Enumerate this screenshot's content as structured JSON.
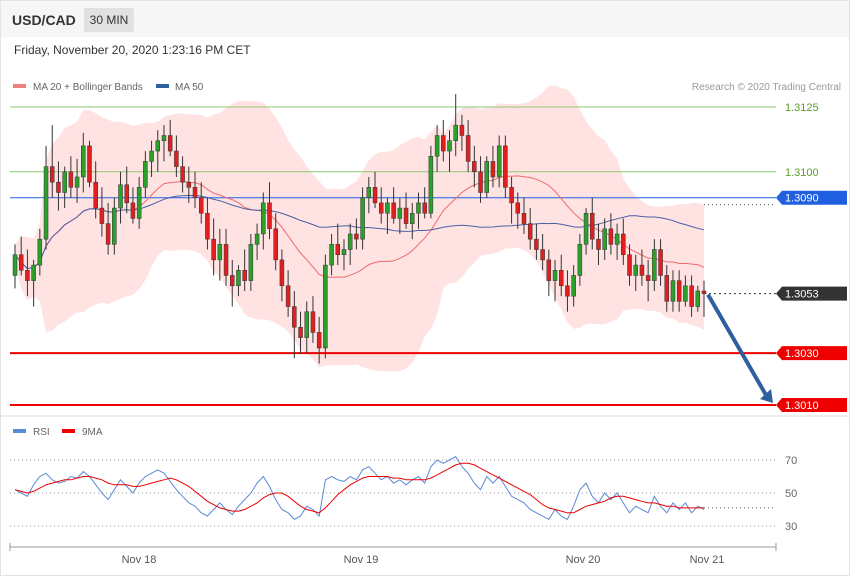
{
  "header": {
    "symbol": "USD/CAD",
    "interval": "30 MIN",
    "datetime": "Friday, November 20, 2020 1:23:16 PM CET"
  },
  "legend": {
    "ma20_label": "MA 20 + Bollinger Bands",
    "ma20_color": "#f08080",
    "ma50_label": "MA 50",
    "ma50_color": "#2e5f9e",
    "credit": "Research © 2020 Trading Central"
  },
  "colors": {
    "bull": "#2ca02c",
    "bear": "#e02020",
    "band": "#ffd9d9",
    "ma50": "#4a5fa8",
    "ma20": "#f06a6a",
    "resistance": "#2060e0",
    "support": "#ee0000",
    "current": "#333333",
    "forecast": "#2e5f9e",
    "rsi": "#5a8ad8",
    "rsi_ma": "#ee0000",
    "target_lines": "#8cc870"
  },
  "chart_data": [
    {
      "type": "candlestick",
      "title": "USD/CAD 30 MIN",
      "ylim": [
        1.299,
        1.314
      ],
      "x_tick_labels": [
        "Nov 18",
        "Nov 19",
        "Nov 20",
        "Nov 21"
      ],
      "levels": [
        {
          "value": 1.3125,
          "label": "1.3125",
          "kind": "target"
        },
        {
          "value": 1.31,
          "label": "1.3100",
          "kind": "target"
        },
        {
          "value": 1.309,
          "label": "1.3090",
          "kind": "resistance"
        },
        {
          "value": 1.3053,
          "label": "1.3053",
          "kind": "current"
        },
        {
          "value": 1.303,
          "label": "1.3030",
          "kind": "support"
        },
        {
          "value": 1.301,
          "label": "1.3010",
          "kind": "support"
        }
      ],
      "forecast": {
        "from": 1.3053,
        "to": 1.301,
        "direction": "down"
      },
      "ohlc": [
        [
          1.306,
          1.3072,
          1.3055,
          1.3068
        ],
        [
          1.3068,
          1.3075,
          1.306,
          1.3062
        ],
        [
          1.3062,
          1.307,
          1.3052,
          1.3058
        ],
        [
          1.3058,
          1.3066,
          1.3048,
          1.3064
        ],
        [
          1.3064,
          1.3078,
          1.306,
          1.3074
        ],
        [
          1.3074,
          1.311,
          1.307,
          1.3102
        ],
        [
          1.3102,
          1.3118,
          1.309,
          1.3096
        ],
        [
          1.3096,
          1.3104,
          1.3085,
          1.3092
        ],
        [
          1.3092,
          1.3102,
          1.3086,
          1.31
        ],
        [
          1.31,
          1.3106,
          1.309,
          1.3094
        ],
        [
          1.3094,
          1.3105,
          1.3088,
          1.3098
        ],
        [
          1.3098,
          1.3115,
          1.3092,
          1.311
        ],
        [
          1.311,
          1.3112,
          1.3094,
          1.3096
        ],
        [
          1.3096,
          1.3104,
          1.3082,
          1.3086
        ],
        [
          1.3086,
          1.3094,
          1.3075,
          1.308
        ],
        [
          1.308,
          1.3088,
          1.3068,
          1.3072
        ],
        [
          1.3072,
          1.309,
          1.3068,
          1.3086
        ],
        [
          1.3086,
          1.31,
          1.308,
          1.3095
        ],
        [
          1.3095,
          1.3102,
          1.3084,
          1.3088
        ],
        [
          1.3088,
          1.3094,
          1.308,
          1.3082
        ],
        [
          1.3082,
          1.3098,
          1.3078,
          1.3094
        ],
        [
          1.3094,
          1.3108,
          1.309,
          1.3104
        ],
        [
          1.3104,
          1.3112,
          1.3098,
          1.3108
        ],
        [
          1.3108,
          1.3116,
          1.31,
          1.3112
        ],
        [
          1.3112,
          1.3118,
          1.3104,
          1.3114
        ],
        [
          1.3114,
          1.312,
          1.3106,
          1.3108
        ],
        [
          1.3108,
          1.3114,
          1.3098,
          1.3102
        ],
        [
          1.3102,
          1.3106,
          1.3092,
          1.3096
        ],
        [
          1.3096,
          1.3102,
          1.3088,
          1.3094
        ],
        [
          1.3094,
          1.31,
          1.3086,
          1.309
        ],
        [
          1.309,
          1.3096,
          1.308,
          1.3084
        ],
        [
          1.3084,
          1.309,
          1.307,
          1.3074
        ],
        [
          1.3074,
          1.3082,
          1.306,
          1.3066
        ],
        [
          1.3066,
          1.3078,
          1.3058,
          1.3072
        ],
        [
          1.3072,
          1.3078,
          1.3056,
          1.306
        ],
        [
          1.306,
          1.3066,
          1.3048,
          1.3056
        ],
        [
          1.3056,
          1.3064,
          1.3052,
          1.3062
        ],
        [
          1.3062,
          1.307,
          1.3054,
          1.3058
        ],
        [
          1.3058,
          1.3076,
          1.3054,
          1.3072
        ],
        [
          1.3072,
          1.308,
          1.3066,
          1.3076
        ],
        [
          1.3076,
          1.3092,
          1.307,
          1.3088
        ],
        [
          1.3088,
          1.3096,
          1.3074,
          1.3078
        ],
        [
          1.3078,
          1.3084,
          1.3062,
          1.3066
        ],
        [
          1.3066,
          1.307,
          1.305,
          1.3056
        ],
        [
          1.3056,
          1.3062,
          1.3044,
          1.3048
        ],
        [
          1.3048,
          1.3054,
          1.3028,
          1.304
        ],
        [
          1.304,
          1.3046,
          1.303,
          1.3036
        ],
        [
          1.3036,
          1.305,
          1.303,
          1.3046
        ],
        [
          1.3046,
          1.3052,
          1.3034,
          1.3038
        ],
        [
          1.3038,
          1.3044,
          1.3026,
          1.3032
        ],
        [
          1.3032,
          1.3068,
          1.3028,
          1.3064
        ],
        [
          1.3064,
          1.3076,
          1.306,
          1.3072
        ],
        [
          1.3072,
          1.308,
          1.3064,
          1.3068
        ],
        [
          1.3068,
          1.3074,
          1.3062,
          1.307
        ],
        [
          1.307,
          1.308,
          1.3064,
          1.3076
        ],
        [
          1.3076,
          1.3082,
          1.307,
          1.3074
        ],
        [
          1.3074,
          1.3094,
          1.307,
          1.309
        ],
        [
          1.309,
          1.3098,
          1.3084,
          1.3094
        ],
        [
          1.3094,
          1.31,
          1.3086,
          1.3088
        ],
        [
          1.3088,
          1.3094,
          1.308,
          1.3084
        ],
        [
          1.3084,
          1.309,
          1.3076,
          1.3088
        ],
        [
          1.3088,
          1.3094,
          1.308,
          1.3082
        ],
        [
          1.3082,
          1.309,
          1.3076,
          1.3086
        ],
        [
          1.3086,
          1.3092,
          1.3078,
          1.308
        ],
        [
          1.308,
          1.3088,
          1.3074,
          1.3084
        ],
        [
          1.3084,
          1.3092,
          1.3078,
          1.3088
        ],
        [
          1.3088,
          1.3094,
          1.3082,
          1.3084
        ],
        [
          1.3084,
          1.311,
          1.3082,
          1.3106
        ],
        [
          1.3106,
          1.3118,
          1.31,
          1.3114
        ],
        [
          1.3114,
          1.312,
          1.3104,
          1.3108
        ],
        [
          1.3108,
          1.3116,
          1.31,
          1.3112
        ],
        [
          1.3112,
          1.313,
          1.3106,
          1.3118
        ],
        [
          1.3118,
          1.3122,
          1.3108,
          1.3114
        ],
        [
          1.3114,
          1.312,
          1.31,
          1.3104
        ],
        [
          1.3104,
          1.311,
          1.3094,
          1.31
        ],
        [
          1.31,
          1.3106,
          1.3088,
          1.3092
        ],
        [
          1.3092,
          1.3106,
          1.309,
          1.3104
        ],
        [
          1.3104,
          1.311,
          1.3094,
          1.3098
        ],
        [
          1.3098,
          1.3114,
          1.3094,
          1.311
        ],
        [
          1.311,
          1.3114,
          1.309,
          1.3094
        ],
        [
          1.3094,
          1.3098,
          1.308,
          1.3088
        ],
        [
          1.3088,
          1.3092,
          1.3078,
          1.3084
        ],
        [
          1.3084,
          1.309,
          1.3076,
          1.308
        ],
        [
          1.308,
          1.3086,
          1.307,
          1.3074
        ],
        [
          1.3074,
          1.308,
          1.3066,
          1.307
        ],
        [
          1.307,
          1.3076,
          1.3062,
          1.3066
        ],
        [
          1.3066,
          1.307,
          1.3052,
          1.3058
        ],
        [
          1.3058,
          1.3066,
          1.305,
          1.3062
        ],
        [
          1.3062,
          1.3068,
          1.3052,
          1.3056
        ],
        [
          1.3056,
          1.3062,
          1.3046,
          1.3052
        ],
        [
          1.3052,
          1.3064,
          1.3048,
          1.306
        ],
        [
          1.306,
          1.3076,
          1.3056,
          1.3072
        ],
        [
          1.3072,
          1.3086,
          1.3068,
          1.3084
        ],
        [
          1.3084,
          1.309,
          1.307,
          1.3074
        ],
        [
          1.3074,
          1.308,
          1.3064,
          1.307
        ],
        [
          1.307,
          1.3082,
          1.3066,
          1.3078
        ],
        [
          1.3078,
          1.3084,
          1.3068,
          1.3072
        ],
        [
          1.3072,
          1.308,
          1.3066,
          1.3076
        ],
        [
          1.3076,
          1.3082,
          1.3064,
          1.3068
        ],
        [
          1.3068,
          1.3072,
          1.3056,
          1.306
        ],
        [
          1.306,
          1.3068,
          1.3054,
          1.3064
        ],
        [
          1.3064,
          1.307,
          1.3056,
          1.306
        ],
        [
          1.306,
          1.3066,
          1.305,
          1.3058
        ],
        [
          1.3058,
          1.3074,
          1.3054,
          1.307
        ],
        [
          1.307,
          1.3074,
          1.3056,
          1.306
        ],
        [
          1.306,
          1.3064,
          1.3046,
          1.305
        ],
        [
          1.305,
          1.3062,
          1.3046,
          1.3058
        ],
        [
          1.3058,
          1.3062,
          1.3046,
          1.305
        ],
        [
          1.305,
          1.306,
          1.3048,
          1.3056
        ],
        [
          1.3056,
          1.306,
          1.3044,
          1.3048
        ],
        [
          1.3048,
          1.3056,
          1.3046,
          1.3054
        ],
        [
          1.3054,
          1.3058,
          1.3044,
          1.3053
        ]
      ]
    },
    {
      "type": "line",
      "name": "RSI",
      "ylim": [
        20,
        80
      ],
      "y_tick_labels": [
        "70",
        "50",
        "30"
      ],
      "series": [
        {
          "name": "RSI",
          "values": [
            52,
            50,
            48,
            55,
            60,
            62,
            58,
            56,
            57,
            60,
            59,
            63,
            60,
            55,
            50,
            46,
            52,
            58,
            54,
            50,
            56,
            60,
            62,
            64,
            62,
            57,
            52,
            48,
            44,
            42,
            38,
            36,
            40,
            44,
            40,
            37,
            42,
            46,
            50,
            56,
            60,
            54,
            46,
            40,
            38,
            34,
            36,
            42,
            40,
            36,
            58,
            60,
            58,
            57,
            60,
            58,
            64,
            66,
            62,
            58,
            60,
            56,
            58,
            55,
            58,
            60,
            56,
            66,
            70,
            68,
            70,
            72,
            66,
            62,
            56,
            52,
            60,
            56,
            60,
            54,
            48,
            46,
            44,
            40,
            38,
            36,
            34,
            40,
            36,
            34,
            42,
            52,
            56,
            48,
            44,
            50,
            46,
            50,
            44,
            38,
            42,
            40,
            38,
            48,
            42,
            38,
            44,
            40,
            44,
            38,
            42,
            40
          ]
        },
        {
          "name": "9MA",
          "values": [
            52,
            51,
            50,
            51,
            53,
            55,
            56,
            57,
            58,
            58,
            59,
            60,
            60,
            59,
            58,
            56,
            55,
            55,
            55,
            54,
            54,
            55,
            56,
            57,
            58,
            59,
            58,
            56,
            54,
            51,
            48,
            45,
            43,
            41,
            40,
            39,
            39,
            40,
            42,
            44,
            47,
            49,
            50,
            50,
            48,
            45,
            42,
            40,
            39,
            38,
            41,
            45,
            49,
            52,
            55,
            57,
            59,
            60,
            60,
            60,
            60,
            59,
            59,
            58,
            58,
            58,
            58,
            59,
            61,
            63,
            65,
            67,
            68,
            68,
            67,
            65,
            63,
            61,
            59,
            57,
            55,
            53,
            51,
            49,
            46,
            43,
            41,
            40,
            39,
            38,
            38,
            40,
            42,
            43,
            44,
            45,
            47,
            48,
            48,
            47,
            46,
            45,
            44,
            44,
            43,
            42,
            42,
            41,
            41,
            41,
            41,
            41
          ]
        }
      ]
    }
  ]
}
